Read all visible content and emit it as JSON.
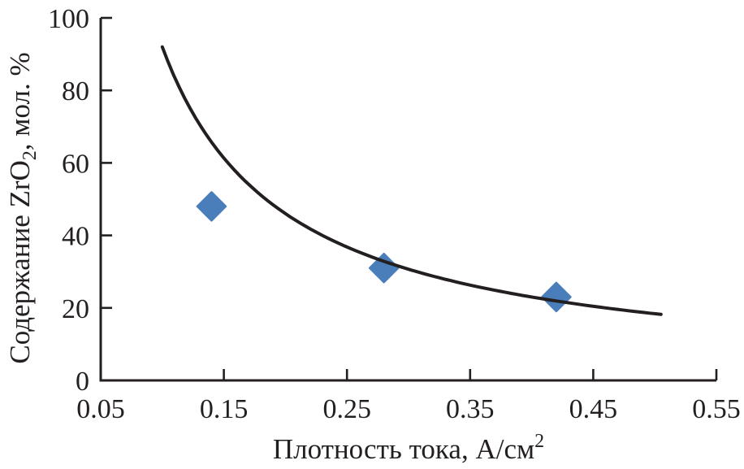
{
  "figure": {
    "background": "#ffffff",
    "ink_color": "#231f20"
  },
  "chart_data": {
    "type": "scatter",
    "title": "",
    "xlabel": "Плотность тока, А/см²",
    "xlabel_parts": [
      {
        "text": "Плотность тока, А/см",
        "script": "normal"
      },
      {
        "text": "2",
        "script": "super"
      }
    ],
    "ylabel": "Содержание ZrO₂, мол. %",
    "ylabel_parts": [
      {
        "text": "Содержание ZrO",
        "script": "normal"
      },
      {
        "text": "2",
        "script": "sub"
      },
      {
        "text": ", мол. %",
        "script": "normal"
      }
    ],
    "xlim": [
      0.05,
      0.55
    ],
    "ylim": [
      0,
      100
    ],
    "x_ticks": [
      0.05,
      0.15,
      0.25,
      0.35,
      0.45,
      0.55
    ],
    "x_tick_labels": [
      "0.05",
      "0.15",
      "0.25",
      "0.35",
      "0.45",
      "0.55"
    ],
    "y_ticks": [
      0,
      20,
      40,
      60,
      80,
      100
    ],
    "y_tick_labels": [
      "0",
      "20",
      "40",
      "60",
      "80",
      "100"
    ],
    "grid": false,
    "legend": "none",
    "series": [
      {
        "name": "ZrO2-content-measurements",
        "type": "scatter",
        "marker": "diamond",
        "marker_color": "#4a7ebb",
        "points": [
          {
            "x": 0.14,
            "y": 48
          },
          {
            "x": 0.28,
            "y": 31
          },
          {
            "x": 0.42,
            "y": 23
          }
        ]
      },
      {
        "name": "hyperbolic-fit-curve",
        "type": "line",
        "line_color": "#231f20",
        "model": "y = k / x",
        "k": 9.2,
        "x_start": 0.1,
        "x_end": 0.505
      }
    ]
  }
}
